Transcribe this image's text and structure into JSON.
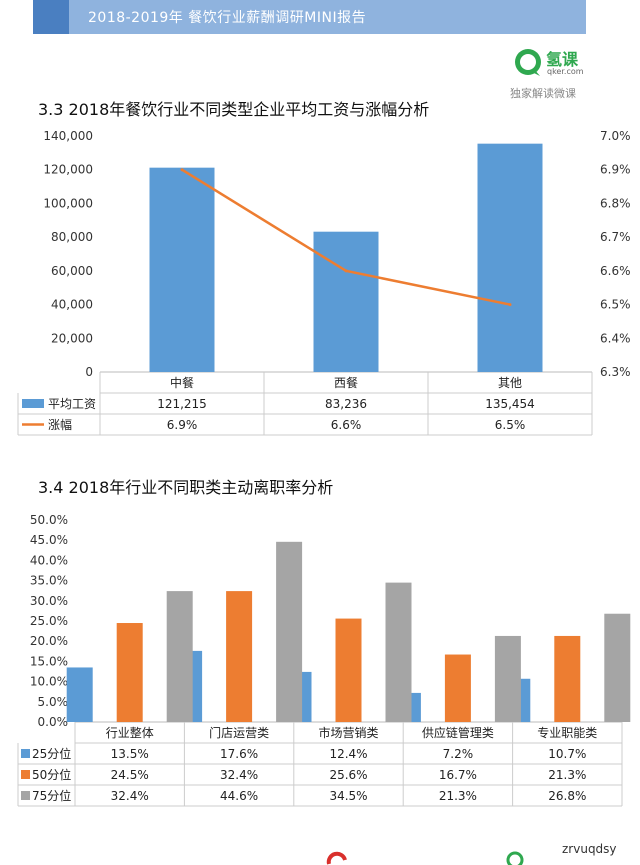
{
  "header": {
    "title": "2018-2019年 餐饮行业薪酬调研MINI报告"
  },
  "logo": {
    "name": "氢课",
    "sub": "qker.com",
    "tagline": "独家解读微课"
  },
  "colors": {
    "blue": "#5b9bd5",
    "orange": "#ed7d31",
    "gray": "#a5a5a5",
    "header": "#8fb3de",
    "accent": "#4a7fc1",
    "green": "#2fa84f"
  },
  "chart1": {
    "title": "3.3 2018年餐饮行业不同类型企业平均工资与涨幅分析",
    "categories": [
      "中餐",
      "西餐",
      "其他"
    ],
    "left_ticks": [
      "140,000",
      "120,000",
      "100,000",
      "80,000",
      "60,000",
      "40,000",
      "20,000",
      "0"
    ],
    "right_ticks": [
      "7.0%",
      "6.9%",
      "6.8%",
      "6.7%",
      "6.6%",
      "6.5%",
      "6.4%",
      "6.3%"
    ],
    "rows": [
      {
        "legend": "平均工资",
        "cells": [
          "121,215",
          "83,236",
          "135,454"
        ]
      },
      {
        "legend": "涨幅",
        "cells": [
          "6.9%",
          "6.6%",
          "6.5%"
        ]
      }
    ]
  },
  "chart2": {
    "title": "3.4 2018年行业不同职类主动离职率分析",
    "categories": [
      "行业整体",
      "门店运营类",
      "市场营销类",
      "供应链管理类",
      "专业职能类"
    ],
    "y_ticks": [
      "50.0%",
      "45.0%",
      "40.0%",
      "35.0%",
      "30.0%",
      "25.0%",
      "20.0%",
      "15.0%",
      "10.0%",
      "5.0%",
      "0.0%"
    ],
    "rows": [
      {
        "legend": "25分位",
        "cells": [
          "13.5%",
          "17.6%",
          "12.4%",
          "7.2%",
          "10.7%"
        ]
      },
      {
        "legend": "50分位",
        "cells": [
          "24.5%",
          "32.4%",
          "25.6%",
          "16.7%",
          "21.3%"
        ]
      },
      {
        "legend": "75分位",
        "cells": [
          "32.4%",
          "44.6%",
          "34.5%",
          "21.3%",
          "26.8%"
        ]
      }
    ]
  },
  "chart_data": [
    {
      "type": "bar",
      "title": "3.3 2018年餐饮行业不同类型企业平均工资与涨幅分析",
      "categories": [
        "中餐",
        "西餐",
        "其他"
      ],
      "series": [
        {
          "name": "平均工资",
          "type": "bar",
          "axis": "left",
          "values": [
            121215,
            83236,
            135454
          ]
        },
        {
          "name": "涨幅",
          "type": "line",
          "axis": "right",
          "values": [
            6.9,
            6.6,
            6.5
          ]
        }
      ],
      "ylim": [
        0,
        140000
      ],
      "y2lim": [
        6.3,
        7.0
      ],
      "grid": false,
      "legend": "data-table"
    },
    {
      "type": "bar",
      "title": "3.4 2018年行业不同职类主动离职率分析",
      "categories": [
        "行业整体",
        "门店运营类",
        "市场营销类",
        "供应链管理类",
        "专业职能类"
      ],
      "series": [
        {
          "name": "25分位",
          "values": [
            13.5,
            17.6,
            12.4,
            7.2,
            10.7
          ]
        },
        {
          "name": "50分位",
          "values": [
            24.5,
            32.4,
            25.6,
            16.7,
            21.3
          ]
        },
        {
          "name": "75分位",
          "values": [
            32.4,
            44.6,
            34.5,
            21.3,
            26.8
          ]
        }
      ],
      "ylim": [
        0,
        50
      ],
      "grid": false,
      "legend": "data-table"
    }
  ],
  "footer": {
    "watermark": "zrvuqdsy"
  }
}
